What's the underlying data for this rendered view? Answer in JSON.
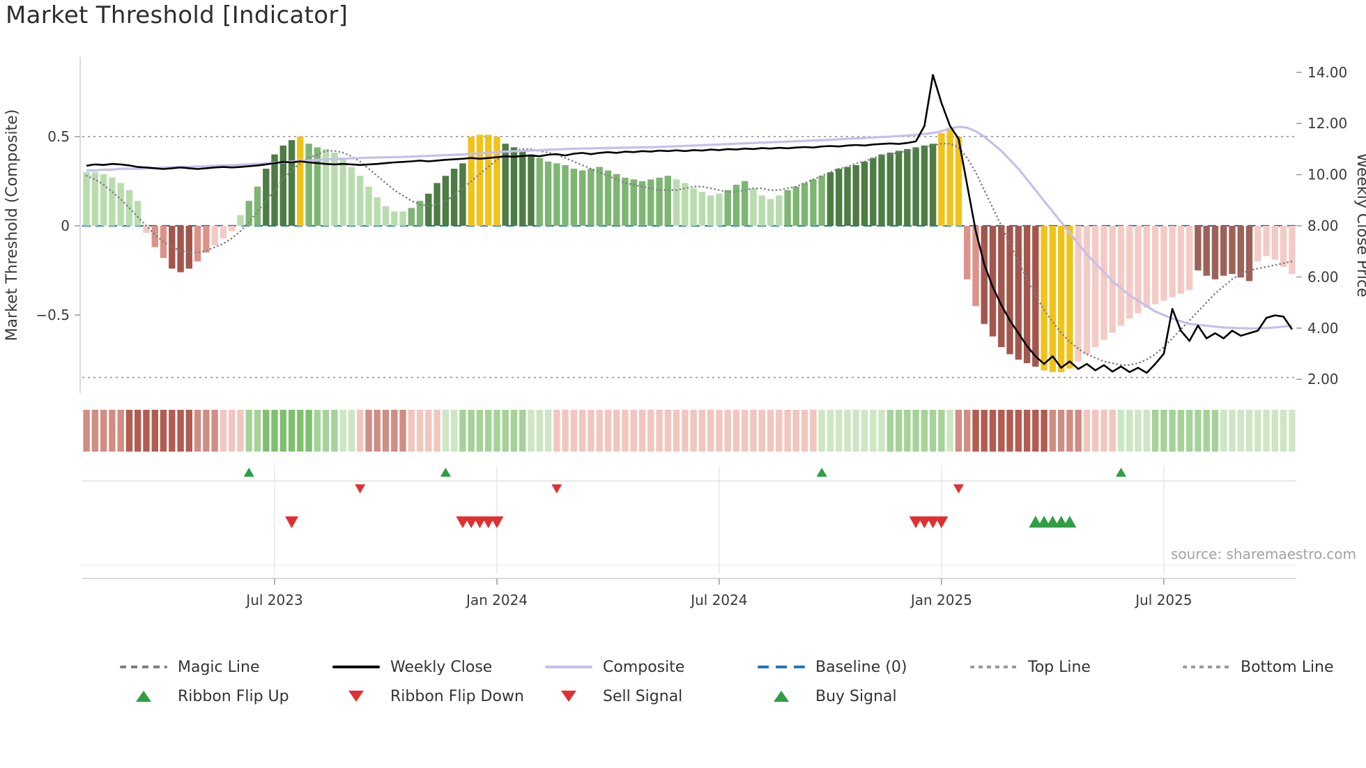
{
  "title": "Market Threshold [Indicator]",
  "source": "source: sharemaestro.com",
  "colors": {
    "background": "#ffffff",
    "weekly_close": "#000000",
    "composite": "#c6bfec",
    "magic_line": "#7f7f7f",
    "baseline": "#1f77b4",
    "guide_line": "#999999",
    "signal_green": "#2f9e44",
    "signal_red": "#e03131",
    "axis_text": "#3a3a3a",
    "bar_tones": {
      "lg": "#b9dcaf",
      "mg": "#7eb573",
      "dg": "#4d7c44",
      "y": "#f1c319",
      "lp": "#f3cbc4",
      "mr": "#dc9289",
      "dr": "#a3564d",
      "br": "#9e6158"
    },
    "ribbon_tones": {
      "-3": "#b25c52",
      "-2": "#d08d83",
      "-1": "#f0c6be",
      "1": "#cde6c3",
      "2": "#a6d299",
      "3": "#7fc070"
    }
  },
  "chart_data": {
    "type": "bar+line",
    "description": "Weekly market-threshold histogram with price overlay, signal ribbon and buy/sell markers",
    "n_weeks": 142,
    "x_axis": {
      "tick_labels": [
        "Jul 2023",
        "Jan 2024",
        "Jul 2024",
        "Jan 2025",
        "Jul 2025"
      ],
      "tick_weeks": [
        22,
        48,
        74,
        100,
        126
      ]
    },
    "left_axis": {
      "label": "Market Threshold (Composite)",
      "range": [
        -0.94,
        0.95
      ],
      "ticks": [
        {
          "label": "0.5",
          "value": 0.5
        },
        {
          "label": "0",
          "value": 0
        },
        {
          "label": "−0.5",
          "value": -0.5
        }
      ]
    },
    "right_axis": {
      "label": "Weekly Close Price",
      "range": [
        1.5,
        14.6
      ],
      "ticks": [
        {
          "label": "14.00",
          "value": 14
        },
        {
          "label": "12.00",
          "value": 12
        },
        {
          "label": "10.00",
          "value": 10
        },
        {
          "label": "8.00",
          "value": 8
        },
        {
          "label": "6.00",
          "value": 6
        },
        {
          "label": "4.00",
          "value": 4
        },
        {
          "label": "2.00",
          "value": 2
        }
      ]
    },
    "reference_lines": {
      "baseline": 0,
      "top_line": 0.5,
      "bottom_line": -0.85
    },
    "threshold_bars": {
      "values": [
        0.3,
        0.3,
        0.29,
        0.27,
        0.24,
        0.2,
        0.14,
        -0.04,
        -0.12,
        -0.18,
        -0.24,
        -0.26,
        -0.24,
        -0.2,
        -0.15,
        -0.11,
        -0.07,
        -0.03,
        0.06,
        0.14,
        0.22,
        0.32,
        0.4,
        0.45,
        0.48,
        0.5,
        0.46,
        0.44,
        0.43,
        0.41,
        0.38,
        0.33,
        0.28,
        0.22,
        0.16,
        0.11,
        0.08,
        0.08,
        0.1,
        0.14,
        0.18,
        0.24,
        0.28,
        0.32,
        0.35,
        0.5,
        0.51,
        0.51,
        0.5,
        0.46,
        0.44,
        0.42,
        0.4,
        0.38,
        0.36,
        0.35,
        0.34,
        0.32,
        0.31,
        0.32,
        0.33,
        0.31,
        0.29,
        0.27,
        0.26,
        0.25,
        0.26,
        0.27,
        0.28,
        0.26,
        0.24,
        0.21,
        0.19,
        0.17,
        0.18,
        0.2,
        0.23,
        0.25,
        0.21,
        0.17,
        0.15,
        0.17,
        0.2,
        0.22,
        0.24,
        0.26,
        0.28,
        0.3,
        0.32,
        0.33,
        0.34,
        0.36,
        0.38,
        0.4,
        0.41,
        0.42,
        0.43,
        0.44,
        0.45,
        0.46,
        0.52,
        0.55,
        0.5,
        -0.3,
        -0.45,
        -0.55,
        -0.62,
        -0.68,
        -0.72,
        -0.75,
        -0.77,
        -0.79,
        -0.81,
        -0.82,
        -0.82,
        -0.8,
        -0.76,
        -0.72,
        -0.68,
        -0.64,
        -0.6,
        -0.56,
        -0.52,
        -0.49,
        -0.46,
        -0.44,
        -0.42,
        -0.4,
        -0.38,
        -0.36,
        -0.25,
        -0.28,
        -0.3,
        -0.28,
        -0.27,
        -0.29,
        -0.31,
        -0.2,
        -0.17,
        -0.19,
        -0.23,
        -0.27
      ],
      "tones": [
        "lg",
        "lg",
        "lg",
        "lg",
        "lg",
        "lg",
        "lg",
        "lp",
        "mr",
        "mr",
        "dr",
        "dr",
        "dr",
        "mr",
        "mr",
        "lp",
        "lp",
        "lp",
        "lg",
        "mg",
        "mg",
        "dg",
        "dg",
        "dg",
        "dg",
        "y",
        "mg",
        "mg",
        "lg",
        "lg",
        "lg",
        "lg",
        "lg",
        "lg",
        "lg",
        "lg",
        "lg",
        "lg",
        "mg",
        "mg",
        "dg",
        "dg",
        "dg",
        "dg",
        "dg",
        "y",
        "y",
        "y",
        "y",
        "dg",
        "dg",
        "dg",
        "dg",
        "mg",
        "mg",
        "mg",
        "mg",
        "mg",
        "mg",
        "mg",
        "mg",
        "mg",
        "mg",
        "mg",
        "mg",
        "mg",
        "mg",
        "mg",
        "mg",
        "lg",
        "lg",
        "lg",
        "lg",
        "lg",
        "lg",
        "mg",
        "mg",
        "mg",
        "lg",
        "lg",
        "lg",
        "lg",
        "mg",
        "mg",
        "mg",
        "mg",
        "mg",
        "dg",
        "dg",
        "dg",
        "dg",
        "dg",
        "dg",
        "dg",
        "dg",
        "dg",
        "dg",
        "dg",
        "dg",
        "dg",
        "y",
        "y",
        "y",
        "mr",
        "mr",
        "dr",
        "dr",
        "dr",
        "dr",
        "dr",
        "dr",
        "dr",
        "y",
        "y",
        "y",
        "y",
        "lp",
        "lp",
        "lp",
        "lp",
        "lp",
        "lp",
        "lp",
        "lp",
        "lp",
        "lp",
        "lp",
        "lp",
        "lp",
        "lp",
        "br",
        "br",
        "br",
        "br",
        "br",
        "br",
        "br",
        "lp",
        "lp",
        "lp",
        "lp",
        "lp"
      ]
    },
    "weekly_close": {
      "name": "Weekly Close",
      "values": [
        10.35,
        10.4,
        10.38,
        10.42,
        10.4,
        10.36,
        10.3,
        10.28,
        10.25,
        10.22,
        10.25,
        10.28,
        10.25,
        10.22,
        10.25,
        10.28,
        10.3,
        10.28,
        10.3,
        10.33,
        10.36,
        10.4,
        10.45,
        10.5,
        10.48,
        10.52,
        10.48,
        10.45,
        10.42,
        10.4,
        10.42,
        10.4,
        10.38,
        10.4,
        10.42,
        10.45,
        10.48,
        10.5,
        10.52,
        10.55,
        10.52,
        10.55,
        10.58,
        10.6,
        10.62,
        10.65,
        10.62,
        10.65,
        10.68,
        10.72,
        10.7,
        10.73,
        10.75,
        10.72,
        10.78,
        10.8,
        10.75,
        10.82,
        10.85,
        10.8,
        10.85,
        10.88,
        10.85,
        10.9,
        10.88,
        10.92,
        10.9,
        10.94,
        10.92,
        10.95,
        10.92,
        10.96,
        10.94,
        10.98,
        10.96,
        11.0,
        10.98,
        11.02,
        11.0,
        11.04,
        11.02,
        11.05,
        11.03,
        11.06,
        11.08,
        11.06,
        11.1,
        11.12,
        11.1,
        11.14,
        11.16,
        11.14,
        11.18,
        11.2,
        11.22,
        11.2,
        11.24,
        11.3,
        11.9,
        13.9,
        12.8,
        11.9,
        11.4,
        9.6,
        7.8,
        6.5,
        5.6,
        4.9,
        4.3,
        3.8,
        3.3,
        2.9,
        2.6,
        2.9,
        2.45,
        2.7,
        2.4,
        2.6,
        2.35,
        2.55,
        2.3,
        2.5,
        2.28,
        2.45,
        2.25,
        2.6,
        3.0,
        4.75,
        3.9,
        3.5,
        4.1,
        3.6,
        3.8,
        3.6,
        3.9,
        3.7,
        3.8,
        3.9,
        4.4,
        4.5,
        4.45,
        3.95
      ]
    },
    "composite": {
      "name": "Composite",
      "values": [
        0.31,
        0.31,
        0.315,
        0.315,
        0.32,
        0.32,
        0.32,
        0.322,
        0.324,
        0.326,
        0.328,
        0.33,
        0.33,
        0.332,
        0.334,
        0.336,
        0.338,
        0.34,
        0.342,
        0.344,
        0.346,
        0.35,
        0.353,
        0.356,
        0.36,
        0.363,
        0.366,
        0.37,
        0.372,
        0.374,
        0.376,
        0.378,
        0.38,
        0.382,
        0.383,
        0.384,
        0.385,
        0.386,
        0.388,
        0.39,
        0.392,
        0.394,
        0.396,
        0.398,
        0.4,
        0.403,
        0.406,
        0.41,
        0.413,
        0.416,
        0.418,
        0.42,
        0.422,
        0.424,
        0.426,
        0.428,
        0.43,
        0.432,
        0.433,
        0.434,
        0.435,
        0.436,
        0.437,
        0.438,
        0.439,
        0.44,
        0.441,
        0.442,
        0.444,
        0.446,
        0.448,
        0.45,
        0.452,
        0.454,
        0.456,
        0.458,
        0.46,
        0.462,
        0.464,
        0.466,
        0.468,
        0.47,
        0.472,
        0.474,
        0.476,
        0.478,
        0.48,
        0.482,
        0.485,
        0.488,
        0.49,
        0.492,
        0.495,
        0.498,
        0.5,
        0.503,
        0.506,
        0.51,
        0.515,
        0.52,
        0.53,
        0.545,
        0.555,
        0.55,
        0.53,
        0.5,
        0.46,
        0.42,
        0.37,
        0.32,
        0.26,
        0.2,
        0.14,
        0.08,
        0.02,
        -0.04,
        -0.1,
        -0.16,
        -0.21,
        -0.26,
        -0.31,
        -0.35,
        -0.39,
        -0.42,
        -0.45,
        -0.48,
        -0.5,
        -0.52,
        -0.535,
        -0.55,
        -0.555,
        -0.56,
        -0.565,
        -0.57,
        -0.572,
        -0.574,
        -0.575,
        -0.575,
        -0.573,
        -0.57,
        -0.565,
        -0.56
      ]
    },
    "magic_line": {
      "name": "Magic Line",
      "values": [
        0.28,
        0.26,
        0.23,
        0.19,
        0.15,
        0.1,
        0.05,
        0.0,
        -0.05,
        -0.09,
        -0.12,
        -0.14,
        -0.15,
        -0.15,
        -0.14,
        -0.12,
        -0.1,
        -0.07,
        -0.03,
        0.02,
        0.08,
        0.14,
        0.2,
        0.26,
        0.31,
        0.35,
        0.38,
        0.4,
        0.42,
        0.42,
        0.41,
        0.39,
        0.36,
        0.32,
        0.28,
        0.24,
        0.2,
        0.17,
        0.14,
        0.12,
        0.11,
        0.12,
        0.14,
        0.17,
        0.21,
        0.25,
        0.29,
        0.33,
        0.37,
        0.4,
        0.42,
        0.43,
        0.43,
        0.42,
        0.41,
        0.4,
        0.38,
        0.36,
        0.34,
        0.32,
        0.3,
        0.28,
        0.26,
        0.24,
        0.23,
        0.22,
        0.21,
        0.2,
        0.2,
        0.2,
        0.21,
        0.22,
        0.22,
        0.21,
        0.2,
        0.19,
        0.19,
        0.2,
        0.21,
        0.21,
        0.2,
        0.2,
        0.21,
        0.22,
        0.24,
        0.26,
        0.28,
        0.3,
        0.32,
        0.33,
        0.35,
        0.36,
        0.38,
        0.39,
        0.4,
        0.41,
        0.42,
        0.43,
        0.44,
        0.45,
        0.46,
        0.46,
        0.44,
        0.38,
        0.3,
        0.2,
        0.1,
        0.0,
        -0.1,
        -0.2,
        -0.3,
        -0.39,
        -0.47,
        -0.54,
        -0.6,
        -0.65,
        -0.69,
        -0.72,
        -0.74,
        -0.76,
        -0.77,
        -0.78,
        -0.78,
        -0.77,
        -0.75,
        -0.72,
        -0.68,
        -0.63,
        -0.58,
        -0.53,
        -0.48,
        -0.43,
        -0.38,
        -0.34,
        -0.3,
        -0.27,
        -0.25,
        -0.24,
        -0.23,
        -0.22,
        -0.21,
        -0.2
      ]
    },
    "ribbon": {
      "tones": [
        -2,
        -2,
        -2,
        -2,
        -2,
        -3,
        -3,
        -3,
        -3,
        -3,
        -3,
        -3,
        -3,
        -2,
        -2,
        -2,
        -1,
        -1,
        -1,
        2,
        2,
        3,
        3,
        3,
        3,
        3,
        3,
        2,
        2,
        2,
        1,
        1,
        -1,
        -2,
        -2,
        -2,
        -2,
        -2,
        -1,
        -1,
        -1,
        -1,
        1,
        1,
        2,
        2,
        2,
        2,
        2,
        2,
        2,
        2,
        1,
        1,
        1,
        -1,
        -1,
        -1,
        -1,
        -1,
        -1,
        -1,
        -1,
        -1,
        -1,
        -1,
        -1,
        -1,
        -1,
        -1,
        -1,
        -1,
        -1,
        -1,
        -1,
        -1,
        -1,
        -1,
        -1,
        -1,
        -1,
        -1,
        -1,
        -1,
        -1,
        -1,
        1,
        1,
        1,
        1,
        1,
        1,
        1,
        1,
        2,
        2,
        2,
        2,
        2,
        2,
        2,
        1,
        -2,
        -2,
        -3,
        -3,
        -3,
        -3,
        -3,
        -3,
        -3,
        -3,
        -3,
        -2,
        -2,
        -2,
        -2,
        -1,
        -1,
        -1,
        -1,
        1,
        1,
        1,
        1,
        2,
        2,
        2,
        2,
        2,
        2,
        2,
        2,
        1,
        1,
        1,
        1,
        1,
        1,
        1,
        1,
        1
      ]
    },
    "signals": {
      "ribbon_flip_up_weeks": [
        19,
        42,
        86,
        121
      ],
      "ribbon_flip_down_weeks": [
        32,
        55,
        102
      ],
      "sell_weeks": [
        24,
        44,
        45,
        46,
        47,
        48,
        97,
        98,
        99,
        100
      ],
      "buy_weeks": [
        111,
        112,
        113,
        114,
        115
      ]
    },
    "legend": {
      "row1": [
        {
          "label": "Magic Line",
          "marker": "line",
          "dash": "med",
          "color": "#7f7f7f",
          "icon": "magic-line-swatch"
        },
        {
          "label": "Weekly Close",
          "marker": "line",
          "dash": "solid",
          "color": "#000000",
          "icon": "weekly-close-swatch"
        },
        {
          "label": "Composite",
          "marker": "line",
          "dash": "solid",
          "color": "#c6bfec",
          "icon": "composite-swatch"
        },
        {
          "label": "Baseline (0)",
          "marker": "line",
          "dash": "long",
          "color": "#1f77b4",
          "icon": "baseline-swatch"
        },
        {
          "label": "Top Line",
          "marker": "line",
          "dash": "short",
          "color": "#999999",
          "icon": "top-line-swatch"
        },
        {
          "label": "Bottom Line",
          "marker": "line",
          "dash": "short",
          "color": "#999999",
          "icon": "bottom-line-swatch"
        }
      ],
      "row2": [
        {
          "label": "Ribbon Flip Up",
          "marker": "triangle-up",
          "color": "#2f9e44",
          "icon": "ribbon-flip-up-icon"
        },
        {
          "label": "Ribbon Flip Down",
          "marker": "triangle-down",
          "color": "#e03131",
          "icon": "ribbon-flip-down-icon"
        },
        {
          "label": "Sell Signal",
          "marker": "triangle-down",
          "color": "#e03131",
          "icon": "sell-signal-icon"
        },
        {
          "label": "Buy Signal",
          "marker": "triangle-up",
          "color": "#2f9e44",
          "icon": "buy-signal-icon"
        }
      ]
    }
  }
}
